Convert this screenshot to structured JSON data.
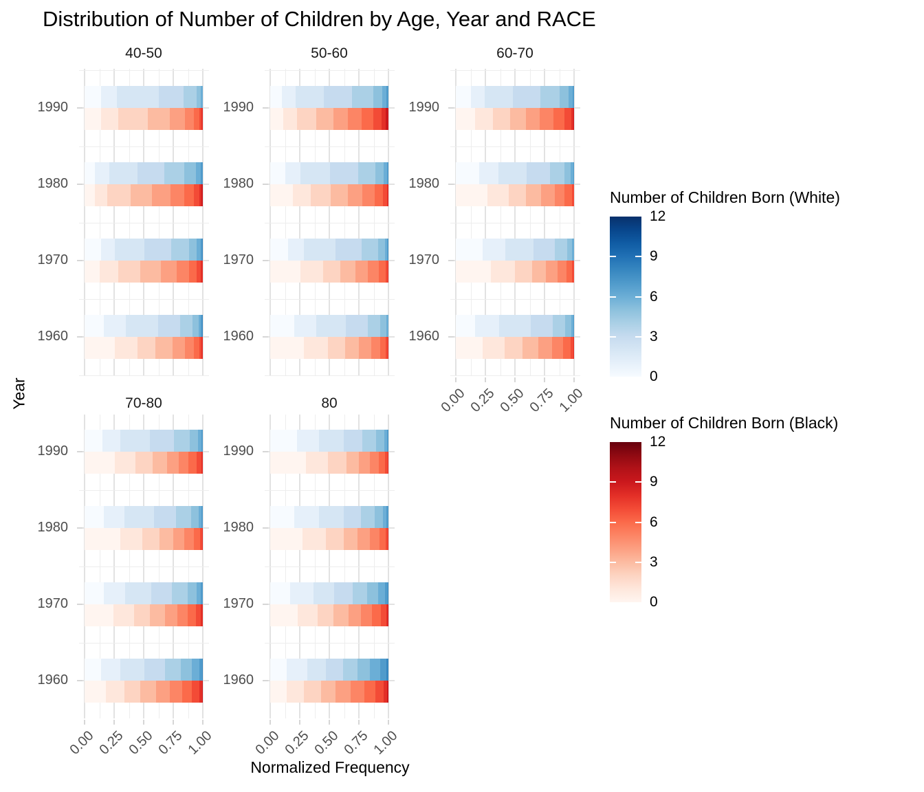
{
  "chart_data": {
    "type": "bar",
    "variant": "horizontal-stacked-normalized-faceted",
    "title": "Distribution of Number of Children by Age, Year and RACE",
    "xlabel": "Normalized Frequency",
    "ylabel": "Year",
    "x_ticks": [
      "0.00",
      "0.25",
      "0.50",
      "0.75",
      "1.00"
    ],
    "x_range": [
      0,
      1
    ],
    "grid": {
      "x_major_step": 0.25,
      "x_minor_step": 0.125,
      "y_major": "every year shown",
      "y_minor": "midpoints"
    },
    "y_categories": [
      "1990",
      "1980",
      "1970",
      "1960"
    ],
    "facet_labels": [
      "40-50",
      "50-60",
      "60-70",
      "70-80",
      "80"
    ],
    "children_scale": {
      "min": 0,
      "max": 12,
      "legend_ticks": [
        "12",
        "9",
        "6",
        "3",
        "0"
      ]
    },
    "legend_position": "right",
    "color_scales": {
      "white": [
        "#F7FBFF",
        "#E6F0FA",
        "#D6E6F4",
        "#C6DBEF",
        "#ABD0E6",
        "#8DC1DD",
        "#6BAED6",
        "#509BCB",
        "#3787C0",
        "#2171B5",
        "#105CA4",
        "#08468C",
        "#08306B"
      ],
      "black": [
        "#FFF5F0",
        "#FEE7DC",
        "#FDD4C2",
        "#FCBBA1",
        "#FCA082",
        "#FC8565",
        "#FB6A4A",
        "#F34B36",
        "#E32F27",
        "#CB181D",
        "#B21218",
        "#900A12",
        "#67000D"
      ]
    },
    "legends": [
      {
        "title": "Number of Children Born (White)",
        "scale": "white"
      },
      {
        "title": "Number of Children Born (Black)",
        "scale": "black"
      }
    ],
    "series_note": "Each year shows two normalized stacked bars: top = White (blues), bottom = Black (reds). Segment k is the estimated normalized frequency of k children born.",
    "facets": [
      {
        "label": "40-50",
        "bars": [
          {
            "year": "1990",
            "white": [
              0.14,
              0.135,
              0.355,
              0.205,
              0.11,
              0.04,
              0.015
            ],
            "black": [
              0.14,
              0.145,
              0.25,
              0.185,
              0.13,
              0.075,
              0.045,
              0.02,
              0.01
            ]
          },
          {
            "year": "1980",
            "white": [
              0.09,
              0.12,
              0.235,
              0.23,
              0.17,
              0.095,
              0.045,
              0.015
            ],
            "black": [
              0.085,
              0.105,
              0.2,
              0.18,
              0.155,
              0.12,
              0.08,
              0.045,
              0.02,
              0.01
            ]
          },
          {
            "year": "1970",
            "white": [
              0.14,
              0.115,
              0.25,
              0.23,
              0.15,
              0.065,
              0.03,
              0.015,
              0.005
            ],
            "black": [
              0.13,
              0.155,
              0.185,
              0.175,
              0.135,
              0.105,
              0.065,
              0.035,
              0.015
            ]
          },
          {
            "year": "1960",
            "white": [
              0.16,
              0.19,
              0.27,
              0.19,
              0.105,
              0.05,
              0.02,
              0.01,
              0.005
            ],
            "black": [
              0.255,
              0.19,
              0.155,
              0.145,
              0.105,
              0.075,
              0.045,
              0.02,
              0.01
            ]
          }
        ]
      },
      {
        "label": "50-60",
        "bars": [
          {
            "year": "1990",
            "white": [
              0.1,
              0.115,
              0.24,
              0.24,
              0.175,
              0.08,
              0.035,
              0.015
            ],
            "black": [
              0.11,
              0.115,
              0.165,
              0.145,
              0.125,
              0.115,
              0.095,
              0.07,
              0.04,
              0.02
            ]
          },
          {
            "year": "1980",
            "white": [
              0.13,
              0.125,
              0.25,
              0.24,
              0.145,
              0.07,
              0.03,
              0.01
            ],
            "black": [
              0.19,
              0.155,
              0.165,
              0.145,
              0.125,
              0.105,
              0.07,
              0.035,
              0.01
            ]
          },
          {
            "year": "1970",
            "white": [
              0.15,
              0.135,
              0.27,
              0.22,
              0.135,
              0.06,
              0.02,
              0.01
            ],
            "black": [
              0.255,
              0.195,
              0.145,
              0.125,
              0.105,
              0.095,
              0.055,
              0.02,
              0.005
            ]
          },
          {
            "year": "1960",
            "white": [
              0.205,
              0.185,
              0.25,
              0.185,
              0.105,
              0.05,
              0.02
            ],
            "black": [
              0.285,
              0.205,
              0.145,
              0.115,
              0.105,
              0.075,
              0.045,
              0.02,
              0.005
            ]
          }
        ]
      },
      {
        "label": "60-70",
        "bars": [
          {
            "year": "1990",
            "white": [
              0.13,
              0.115,
              0.24,
              0.23,
              0.165,
              0.075,
              0.035,
              0.01
            ],
            "black": [
              0.16,
              0.155,
              0.145,
              0.135,
              0.115,
              0.115,
              0.095,
              0.055,
              0.02,
              0.005
            ]
          },
          {
            "year": "1980",
            "white": [
              0.195,
              0.165,
              0.24,
              0.195,
              0.125,
              0.05,
              0.025,
              0.005
            ],
            "black": [
              0.265,
              0.185,
              0.145,
              0.125,
              0.115,
              0.085,
              0.06,
              0.02
            ]
          },
          {
            "year": "1970",
            "white": [
              0.225,
              0.195,
              0.24,
              0.175,
              0.105,
              0.045,
              0.015
            ],
            "black": [
              0.295,
              0.205,
              0.145,
              0.115,
              0.1,
              0.075,
              0.05,
              0.015
            ]
          },
          {
            "year": "1960",
            "white": [
              0.16,
              0.205,
              0.27,
              0.185,
              0.105,
              0.05,
              0.02,
              0.005
            ],
            "black": [
              0.225,
              0.185,
              0.155,
              0.135,
              0.115,
              0.095,
              0.06,
              0.025,
              0.005
            ]
          }
        ]
      },
      {
        "label": "70-80",
        "bars": [
          {
            "year": "1990",
            "white": [
              0.15,
              0.155,
              0.25,
              0.2,
              0.135,
              0.07,
              0.03,
              0.01
            ],
            "black": [
              0.255,
              0.175,
              0.145,
              0.125,
              0.095,
              0.085,
              0.07,
              0.04,
              0.01
            ]
          },
          {
            "year": "1980",
            "white": [
              0.16,
              0.175,
              0.25,
              0.19,
              0.125,
              0.065,
              0.025,
              0.01
            ],
            "black": [
              0.305,
              0.185,
              0.145,
              0.115,
              0.095,
              0.08,
              0.05,
              0.02,
              0.005
            ]
          },
          {
            "year": "1970",
            "white": [
              0.16,
              0.185,
              0.22,
              0.175,
              0.135,
              0.075,
              0.035,
              0.015
            ],
            "black": [
              0.245,
              0.175,
              0.135,
              0.125,
              0.105,
              0.085,
              0.07,
              0.045,
              0.015
            ]
          },
          {
            "year": "1960",
            "white": [
              0.14,
              0.165,
              0.2,
              0.175,
              0.135,
              0.095,
              0.06,
              0.025,
              0.005
            ],
            "black": [
              0.18,
              0.155,
              0.135,
              0.135,
              0.115,
              0.105,
              0.085,
              0.06,
              0.025,
              0.005
            ]
          }
        ]
      },
      {
        "label": "80",
        "bars": [
          {
            "year": "1990",
            "white": [
              0.225,
              0.185,
              0.215,
              0.155,
              0.115,
              0.07,
              0.025,
              0.01
            ],
            "black": [
              0.305,
              0.185,
              0.155,
              0.105,
              0.095,
              0.075,
              0.05,
              0.025,
              0.005
            ]
          },
          {
            "year": "1980",
            "white": [
              0.205,
              0.205,
              0.215,
              0.145,
              0.115,
              0.07,
              0.03,
              0.015
            ],
            "black": [
              0.275,
              0.195,
              0.155,
              0.115,
              0.105,
              0.08,
              0.05,
              0.02,
              0.005
            ]
          },
          {
            "year": "1970",
            "white": [
              0.17,
              0.195,
              0.175,
              0.155,
              0.125,
              0.095,
              0.055,
              0.025,
              0.005
            ],
            "black": [
              0.235,
              0.165,
              0.135,
              0.125,
              0.105,
              0.095,
              0.075,
              0.045,
              0.015,
              0.005
            ]
          },
          {
            "year": "1960",
            "white": [
              0.14,
              0.175,
              0.155,
              0.145,
              0.125,
              0.105,
              0.085,
              0.05,
              0.02
            ],
            "black": [
              0.14,
              0.145,
              0.145,
              0.125,
              0.125,
              0.115,
              0.095,
              0.07,
              0.03,
              0.01
            ]
          }
        ]
      }
    ]
  }
}
